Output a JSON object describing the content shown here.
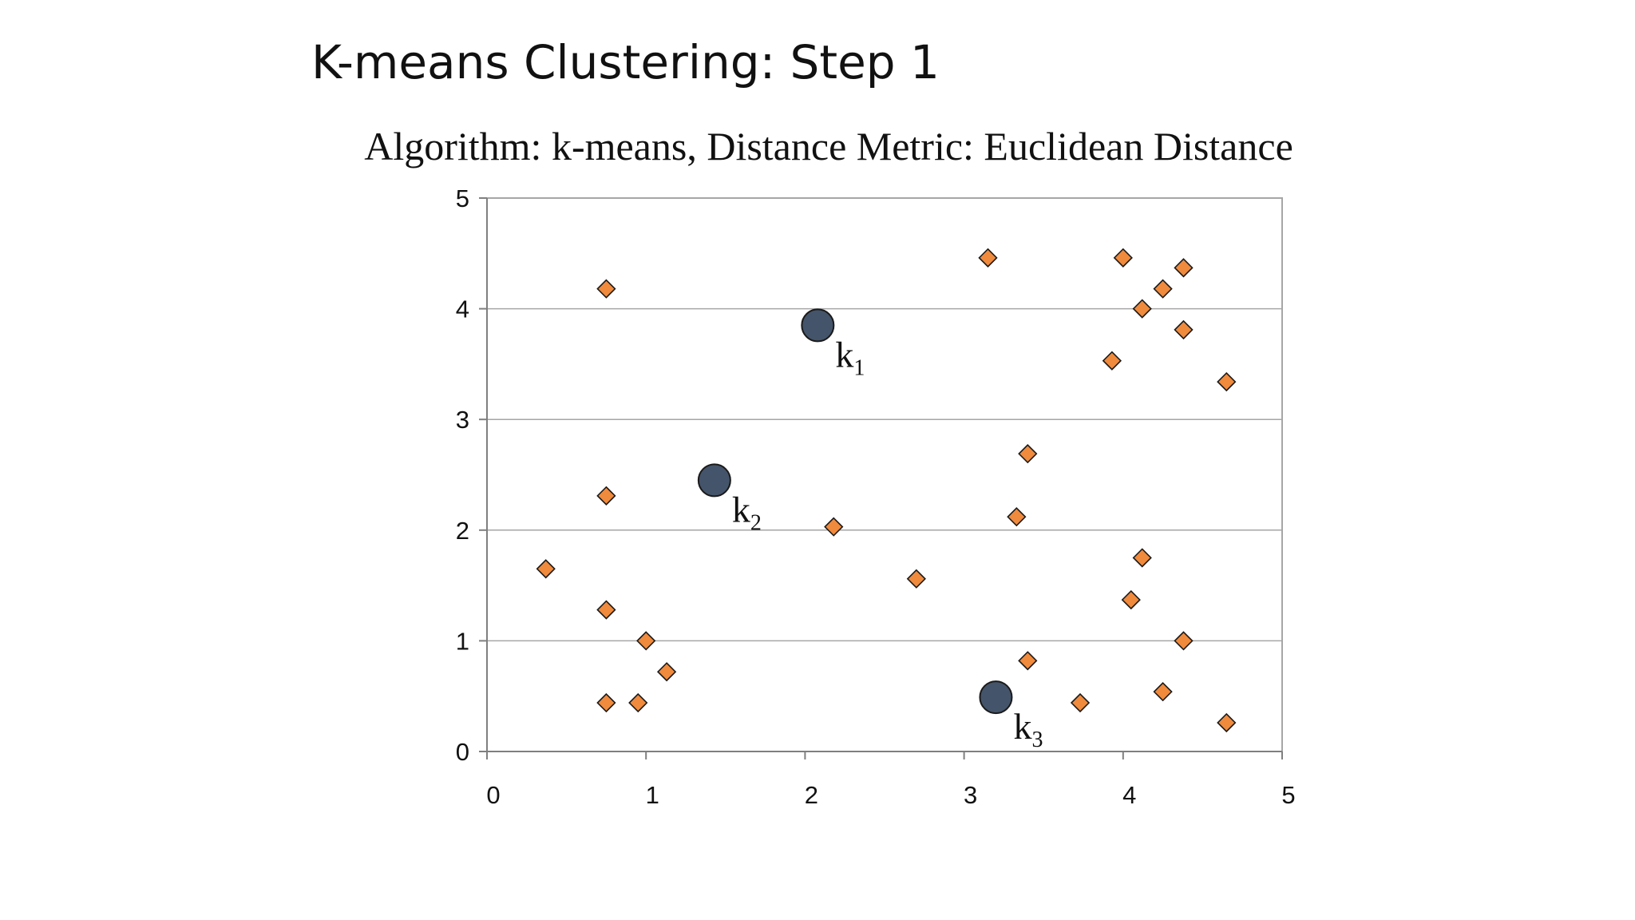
{
  "slide": {
    "title": "K-means Clustering: Step 1"
  },
  "chart_data": {
    "type": "scatter",
    "title": "Algorithm: k-means, Distance Metric: Euclidean Distance",
    "xlabel": "",
    "ylabel": "",
    "xlim": [
      0,
      5
    ],
    "ylim": [
      0,
      5
    ],
    "x_ticks": [
      "0",
      "1",
      "2",
      "3",
      "4",
      "5"
    ],
    "y_ticks": [
      "0",
      "1",
      "2",
      "3",
      "4",
      "5"
    ],
    "grid": "horizontal",
    "legend": "none",
    "colors": {
      "points": "#f08a3c",
      "point_stroke": "#1a1a1a",
      "centroids": "#44546a",
      "gridline": "#a6a6a6",
      "frame": "#a6a6a6"
    },
    "series": [
      {
        "marker": "diamond",
        "points": [
          [
            0.75,
            4.18
          ],
          [
            0.75,
            2.31
          ],
          [
            0.37,
            1.65
          ],
          [
            0.75,
            1.28
          ],
          [
            1.0,
            1.0
          ],
          [
            1.13,
            0.72
          ],
          [
            0.75,
            0.44
          ],
          [
            0.95,
            0.44
          ],
          [
            2.18,
            2.03
          ],
          [
            2.7,
            1.56
          ],
          [
            3.15,
            4.46
          ],
          [
            3.4,
            2.69
          ],
          [
            3.33,
            2.12
          ],
          [
            3.4,
            0.82
          ],
          [
            3.73,
            0.44
          ],
          [
            4.0,
            4.46
          ],
          [
            4.12,
            4.0
          ],
          [
            4.25,
            4.18
          ],
          [
            4.38,
            4.37
          ],
          [
            4.38,
            3.81
          ],
          [
            3.93,
            3.53
          ],
          [
            4.65,
            3.34
          ],
          [
            4.12,
            1.75
          ],
          [
            4.05,
            1.37
          ],
          [
            4.38,
            1.0
          ],
          [
            4.25,
            0.54
          ],
          [
            4.65,
            0.26
          ]
        ]
      },
      {
        "marker": "circle",
        "points": [
          {
            "x": 2.08,
            "y": 3.85,
            "label": "k",
            "sub": "1"
          },
          {
            "x": 1.43,
            "y": 2.45,
            "label": "k",
            "sub": "2"
          },
          {
            "x": 3.2,
            "y": 0.49,
            "label": "k",
            "sub": "3"
          }
        ]
      }
    ]
  }
}
